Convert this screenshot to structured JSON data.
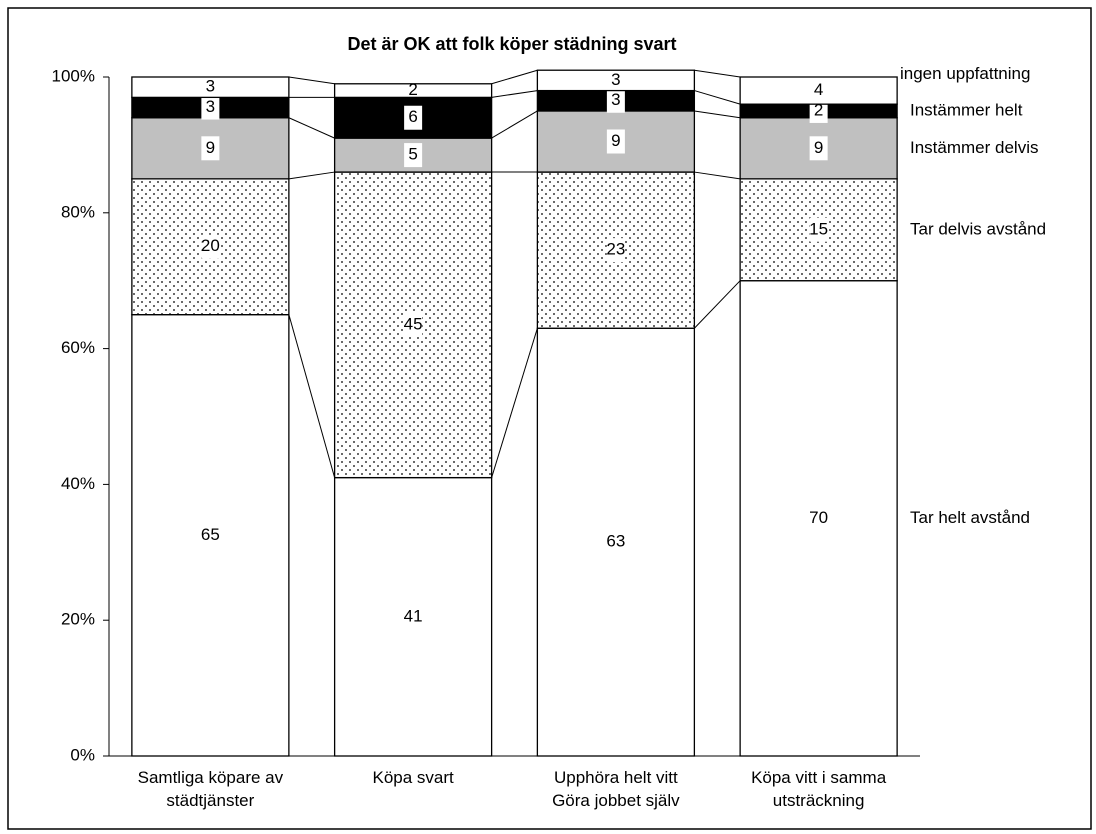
{
  "chart_data": {
    "type": "stacked_bar",
    "title": "Det är OK att folk köper städning svart",
    "categories": [
      "Samtliga köpare av\nstädtjänster",
      "Köpa svart",
      "Upphöra helt vitt\nGöra jobbet själv",
      "Köpa vitt i samma\nutsträckning"
    ],
    "series": [
      {
        "name": "Tar helt avstånd",
        "color": "#ffffff",
        "values": [
          65,
          41,
          63,
          70
        ]
      },
      {
        "name": "Tar delvis avstånd",
        "color": "#ffffff",
        "pattern": "dotted",
        "values": [
          20,
          45,
          23,
          15
        ]
      },
      {
        "name": "Instämmer delvis",
        "color": "#c0c0c0",
        "values": [
          9,
          5,
          9,
          9
        ]
      },
      {
        "name": "Instämmer helt",
        "color": "#000000",
        "values": [
          3,
          6,
          3,
          2
        ]
      },
      {
        "name": "ingen uppfattning",
        "color": "#ffffff",
        "values": [
          3,
          2,
          3,
          4
        ]
      }
    ],
    "ylim": [
      0,
      100
    ],
    "yticks": [
      {
        "value": 0,
        "label": "0%"
      },
      {
        "value": 20,
        "label": "20%"
      },
      {
        "value": 40,
        "label": "40%"
      },
      {
        "value": 60,
        "label": "60%"
      },
      {
        "value": 80,
        "label": "80%"
      },
      {
        "value": 100,
        "label": "100%"
      }
    ],
    "series_lines": true
  }
}
